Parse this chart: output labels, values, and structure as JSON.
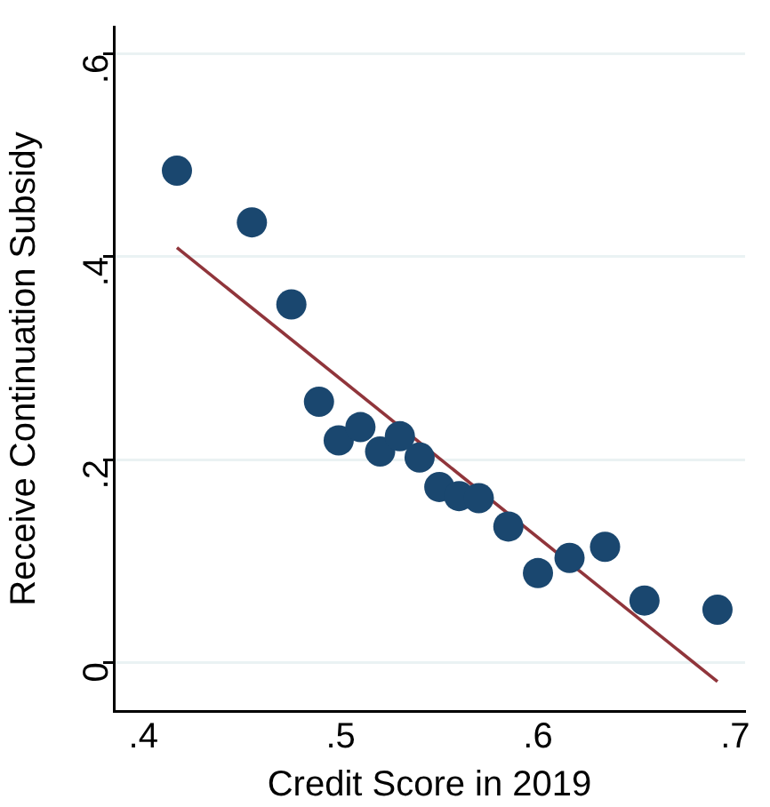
{
  "chart_data": {
    "type": "scatter",
    "xlabel": "Credit Score in 2019",
    "ylabel": "Receive Continuation Subsidy",
    "x": [
      0.417,
      0.455,
      0.475,
      0.489,
      0.499,
      0.51,
      0.52,
      0.53,
      0.54,
      0.55,
      0.56,
      0.57,
      0.585,
      0.6,
      0.616,
      0.634,
      0.654,
      0.691
    ],
    "series": [
      {
        "type": "scatter",
        "color": "#1a476f",
        "marker": "circle",
        "values": [
          0.485,
          0.434,
          0.353,
          0.257,
          0.219,
          0.232,
          0.208,
          0.223,
          0.202,
          0.173,
          0.164,
          0.162,
          0.134,
          0.088,
          0.103,
          0.114,
          0.061,
          0.052
        ]
      },
      {
        "type": "line",
        "color": "#90353b",
        "line_style": "solid",
        "marker": "none",
        "x": [
          0.417,
          0.691
        ],
        "values": [
          0.409,
          -0.019
        ]
      }
    ],
    "xlim": [
      0.385,
      0.705
    ],
    "ylim": [
      -0.048,
      0.627
    ],
    "xticks": [
      {
        "value": 0.4,
        "label": ".4"
      },
      {
        "value": 0.5,
        "label": ".5"
      },
      {
        "value": 0.6,
        "label": ".6"
      },
      {
        "value": 0.7,
        "label": ".7"
      }
    ],
    "yticks": [
      0,
      {
        "value": 0.2,
        "label": ".2"
      },
      {
        "value": 0.4,
        "label": ".4"
      },
      {
        "value": 0.6,
        "label": ".6"
      }
    ],
    "grid": "y",
    "legend": false
  }
}
